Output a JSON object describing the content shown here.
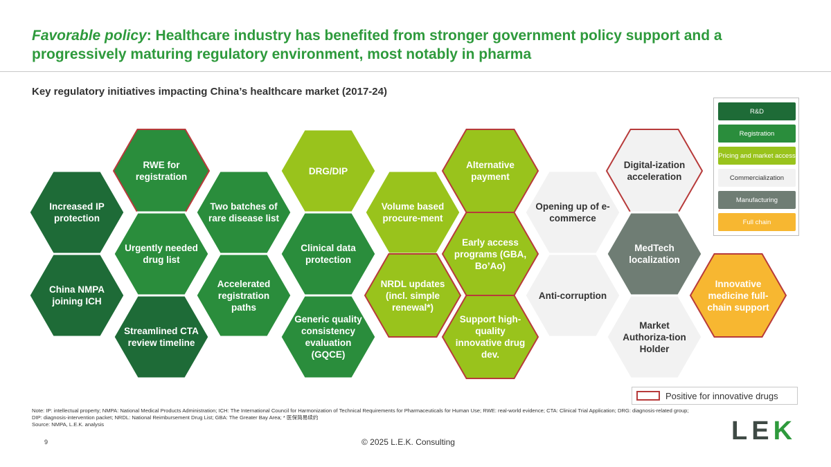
{
  "title": {
    "lead": "Favorable policy",
    "rest": ": Healthcare industry has benefited from stronger government policy support and a progressively maturing regulatory environment, most notably in pharma"
  },
  "subtitle": "Key regulatory initiatives impacting China’s healthcare market (2017-24)",
  "categories": {
    "rd": {
      "label": "R&D",
      "fill": "#1e6b37",
      "text": "#ffffff"
    },
    "registration": {
      "label": "Registration",
      "fill": "#2a8d3c",
      "text": "#ffffff"
    },
    "pricing": {
      "label": "Pricing and market access",
      "fill": "#99c31c",
      "text": "#ffffff"
    },
    "commercialization": {
      "label": "Commercialization",
      "fill": "#f2f2f2",
      "text": "#333333"
    },
    "manufacturing": {
      "label": "Manufacturing",
      "fill": "#6f7d74",
      "text": "#ffffff"
    },
    "fullchain": {
      "label": "Full chain",
      "fill": "#f7b731",
      "text": "#ffffff"
    }
  },
  "innovative_border_color": "#b73a3a",
  "hexes": [
    {
      "label": "Increased IP protection",
      "category": "rd",
      "innovative": false
    },
    {
      "label": "China NMPA joining ICH",
      "category": "rd",
      "innovative": false
    },
    {
      "label": "RWE for registration",
      "category": "registration",
      "innovative": true
    },
    {
      "label": "Urgently needed drug list",
      "category": "registration",
      "innovative": false
    },
    {
      "label": "Streamlined CTA review timeline",
      "category": "rd",
      "innovative": false
    },
    {
      "label": "Two batches of rare disease list",
      "category": "registration",
      "innovative": false
    },
    {
      "label": "Accelerated registration paths",
      "category": "registration",
      "innovative": false
    },
    {
      "label": "DRG/DIP",
      "category": "pricing",
      "innovative": false
    },
    {
      "label": "Clinical data protection",
      "category": "registration",
      "innovative": false
    },
    {
      "label": "Generic quality consistency evaluation (GQCE)",
      "category": "registration",
      "innovative": false
    },
    {
      "label": "Volume based procure-ment",
      "category": "pricing",
      "innovative": false
    },
    {
      "label": "NRDL updates (incl. simple renewal*)",
      "category": "pricing",
      "innovative": true
    },
    {
      "label": "Alternative payment",
      "category": "pricing",
      "innovative": true
    },
    {
      "label": "Early access programs (GBA, Bo’Ao)",
      "category": "pricing",
      "innovative": true
    },
    {
      "label": "Support high-quality innovative drug dev.",
      "category": "pricing",
      "innovative": true
    },
    {
      "label": "Opening up of e-commerce",
      "category": "commercialization",
      "innovative": false
    },
    {
      "label": "Anti-corruption",
      "category": "commercialization",
      "innovative": false
    },
    {
      "label": "Digital-ization acceleration",
      "category": "commercialization",
      "innovative": true
    },
    {
      "label": "MedTech localization",
      "category": "manufacturing",
      "innovative": false
    },
    {
      "label": "Market Authoriza-tion Holder",
      "category": "commercialization",
      "innovative": false
    },
    {
      "label": "Innovative medicine full-chain support",
      "category": "fullchain",
      "innovative": true
    }
  ],
  "legend_innovative": "Positive for innovative drugs",
  "notes": "Note: IP: intellectual property; NMPA: National Medical Products Administration; ICH: The International Council for Harmonization of Technical Requirements for Pharmaceuticals for Human Use; RWE: real-world evidence; CTA: Clinical Trial Application; DRG: diagnosis-related group; DIP: diagnosis-intervention packet; NRDL: National Reimbursement Drug List; GBA: The Greater Bay Area; * 医保简易续约",
  "source": "Source: NMPA, L.E.K. analysis",
  "page_number": "9",
  "copyright": "© 2025 L.E.K. Consulting",
  "logo": {
    "part1": "LE",
    "part2": "K"
  }
}
